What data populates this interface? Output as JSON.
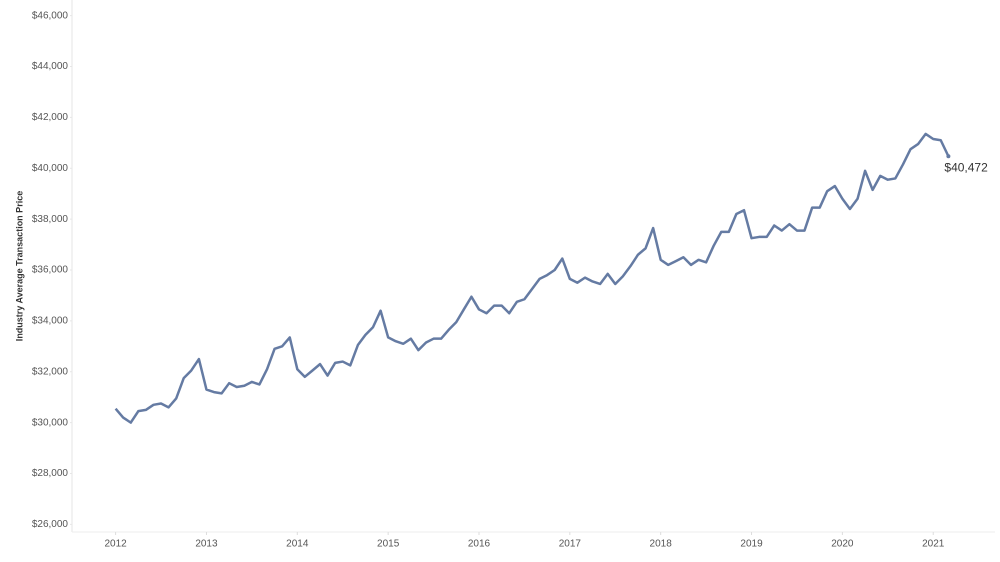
{
  "chart_data": {
    "type": "line",
    "y_label": "Industry Average Transaction Price",
    "x": [
      2012,
      2012.083,
      2012.167,
      2012.25,
      2012.333,
      2012.417,
      2012.5,
      2012.583,
      2012.667,
      2012.75,
      2012.833,
      2012.917,
      2013,
      2013.083,
      2013.167,
      2013.25,
      2013.333,
      2013.417,
      2013.5,
      2013.583,
      2013.667,
      2013.75,
      2013.833,
      2013.917,
      2014,
      2014.083,
      2014.167,
      2014.25,
      2014.333,
      2014.417,
      2014.5,
      2014.583,
      2014.667,
      2014.75,
      2014.833,
      2014.917,
      2015,
      2015.083,
      2015.167,
      2015.25,
      2015.333,
      2015.417,
      2015.5,
      2015.583,
      2015.667,
      2015.75,
      2015.833,
      2015.917,
      2016,
      2016.083,
      2016.167,
      2016.25,
      2016.333,
      2016.417,
      2016.5,
      2016.583,
      2016.667,
      2016.75,
      2016.833,
      2016.917,
      2017,
      2017.083,
      2017.167,
      2017.25,
      2017.333,
      2017.417,
      2017.5,
      2017.583,
      2017.667,
      2017.75,
      2017.833,
      2017.917,
      2018,
      2018.083,
      2018.167,
      2018.25,
      2018.333,
      2018.417,
      2018.5,
      2018.583,
      2018.667,
      2018.75,
      2018.833,
      2018.917,
      2019,
      2019.083,
      2019.167,
      2019.25,
      2019.333,
      2019.417,
      2019.5,
      2019.583,
      2019.667,
      2019.75,
      2019.833,
      2019.917,
      2020,
      2020.083,
      2020.167,
      2020.25,
      2020.333,
      2020.417,
      2020.5,
      2020.583,
      2020.667,
      2020.75,
      2020.833,
      2020.917,
      2021,
      2021.083,
      2021.167
    ],
    "series": [
      {
        "name": "Industry Average Transaction Price",
        "color": "#657ba3",
        "values": [
          30550,
          30200,
          30000,
          30450,
          30500,
          30700,
          30750,
          30600,
          30950,
          31750,
          32050,
          32500,
          31300,
          31200,
          31150,
          31550,
          31400,
          31450,
          31600,
          31500,
          32100,
          32900,
          33000,
          33350,
          32100,
          31800,
          32050,
          32300,
          31850,
          32350,
          32400,
          32250,
          33050,
          33450,
          33750,
          34400,
          33350,
          33200,
          33100,
          33300,
          32850,
          33150,
          33300,
          33300,
          33650,
          33950,
          34450,
          34950,
          34450,
          34300,
          34600,
          34600,
          34300,
          34750,
          34850,
          35250,
          35650,
          35800,
          36000,
          36450,
          35650,
          35500,
          35700,
          35550,
          35450,
          35850,
          35450,
          35750,
          36150,
          36600,
          36850,
          37650,
          36400,
          36200,
          36350,
          36500,
          36200,
          36400,
          36300,
          36950,
          37500,
          37500,
          38200,
          38350,
          37250,
          37300,
          37300,
          37750,
          37550,
          37800,
          37550,
          37550,
          38450,
          38450,
          39100,
          39300,
          38800,
          38400,
          38800,
          39900,
          39150,
          39700,
          39550,
          39600,
          40150,
          40750,
          40950,
          41350,
          41150,
          41100,
          40472
        ]
      }
    ],
    "last_value_label": "$40,472",
    "xlim": [
      2011.52,
      2021.68
    ],
    "xticks": [
      2012,
      2013,
      2014,
      2015,
      2016,
      2017,
      2018,
      2019,
      2020,
      2021
    ],
    "ylim": [
      25700,
      46300
    ],
    "yticks": [
      {
        "value": 26000,
        "label": "$26,000"
      },
      {
        "value": 28000,
        "label": "$28,000"
      },
      {
        "value": 30000,
        "label": "$30,000"
      },
      {
        "value": 32000,
        "label": "$32,000"
      },
      {
        "value": 34000,
        "label": "$34,000"
      },
      {
        "value": 36000,
        "label": "$36,000"
      },
      {
        "value": 38000,
        "label": "$38,000"
      },
      {
        "value": 40000,
        "label": "$40,000"
      },
      {
        "value": 42000,
        "label": "$42,000"
      },
      {
        "value": 44000,
        "label": "$44,000"
      },
      {
        "value": 46000,
        "label": "$46,000"
      }
    ],
    "grid": false
  }
}
